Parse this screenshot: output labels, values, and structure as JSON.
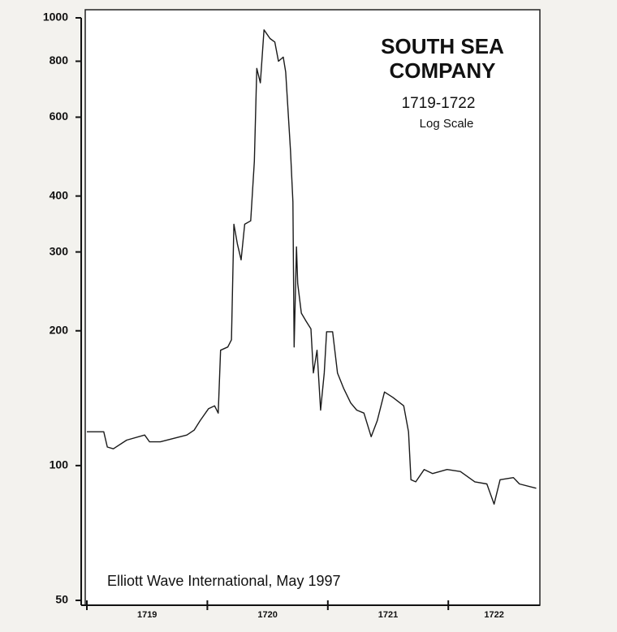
{
  "chart_data": {
    "type": "line",
    "title": "SOUTH SEA COMPANY",
    "subtitle": "1719-1722",
    "scale_note": "Log Scale",
    "annotation": "Elliott Wave International, May 1997",
    "log_scale": true,
    "grid": false,
    "x": [
      1719.0,
      1719.14,
      1719.17,
      1719.22,
      1719.33,
      1719.48,
      1719.52,
      1719.61,
      1719.83,
      1719.89,
      1719.94,
      1720.01,
      1720.06,
      1720.09,
      1720.11,
      1720.17,
      1720.2,
      1720.22,
      1720.25,
      1720.28,
      1720.31,
      1720.36,
      1720.39,
      1720.41,
      1720.44,
      1720.47,
      1720.52,
      1720.56,
      1720.59,
      1720.63,
      1720.65,
      1720.69,
      1720.71,
      1720.72,
      1720.74,
      1720.75,
      1720.78,
      1720.82,
      1720.86,
      1720.88,
      1720.91,
      1720.94,
      1720.97,
      1720.99,
      1721.04,
      1721.08,
      1721.13,
      1721.19,
      1721.24,
      1721.3,
      1721.36,
      1721.41,
      1721.47,
      1721.54,
      1721.63,
      1721.67,
      1721.69,
      1721.73,
      1721.8,
      1721.87,
      1721.99,
      1722.1,
      1722.22,
      1722.32,
      1722.38,
      1722.43,
      1722.54,
      1722.59,
      1722.73
    ],
    "series": [
      {
        "name": "South Sea Company",
        "color": "#1a1a1a",
        "values": [
          119,
          119,
          110,
          109,
          114,
          117,
          113,
          113,
          117,
          120,
          126,
          134,
          136,
          131,
          181,
          184,
          191,
          346,
          312,
          288,
          346,
          352,
          478,
          771,
          716,
          940,
          899,
          883,
          800,
          817,
          757,
          506,
          388,
          184,
          308,
          255,
          219,
          210,
          202,
          161,
          181,
          133,
          161,
          199,
          199,
          161,
          149,
          138,
          133,
          131,
          116,
          126,
          146,
          142,
          136,
          119,
          93,
          92,
          98,
          96,
          98,
          97,
          92,
          91,
          82,
          93,
          94,
          91,
          89
        ]
      }
    ],
    "xlim": [
      1719,
      1722.76
    ],
    "xticks": [
      1719,
      1720,
      1721,
      1722
    ],
    "ylim": [
      50,
      1000
    ],
    "yticks": [
      50,
      100,
      200,
      300,
      400,
      600,
      800,
      1000
    ]
  }
}
